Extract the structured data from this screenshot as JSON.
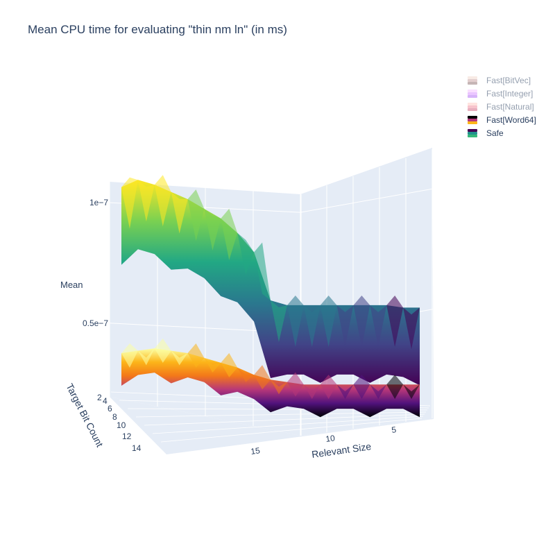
{
  "chart_data": {
    "type": "surface3d",
    "title": "Mean CPU time for evaluating \"thin nm ln\" (in ms)",
    "xlabel": "Relevant Size",
    "ylabel": "Target Bit Count",
    "zlabel": "Mean",
    "x_ticks": [
      "15",
      "10",
      "5"
    ],
    "y_ticks": [
      "2",
      "4",
      "6",
      "8",
      "10",
      "12",
      "14"
    ],
    "z_ticks": [
      "1e−7",
      "0.5e−7"
    ],
    "z_tick_values": [
      1e-07,
      5e-08
    ],
    "x_range": [
      1,
      19
    ],
    "y_range": [
      1,
      15
    ],
    "z_range": [
      2e-08,
      1.15e-07
    ],
    "legend_position": "top-right",
    "legend": [
      {
        "name": "Fast[BitVec]",
        "visible": false,
        "colors": [
          "#f2d8cc",
          "#c8a0a0",
          "#8e6e6e"
        ]
      },
      {
        "name": "Fast[Integer]",
        "visible": false,
        "colors": [
          "#f7c1ff",
          "#d68dff",
          "#b069f5"
        ]
      },
      {
        "name": "Fast[Natural]",
        "visible": false,
        "colors": [
          "#ffc8c0",
          "#f08a9a",
          "#d2607f"
        ]
      },
      {
        "name": "Fast[Word64]",
        "visible": true,
        "colors": [
          "#000004",
          "#b73779",
          "#fcb519"
        ]
      },
      {
        "name": "Safe",
        "visible": true,
        "colors": [
          "#440154",
          "#21918c",
          "#35b779"
        ]
      }
    ],
    "series": [
      {
        "name": "Safe",
        "colorscale": "viridis",
        "x": [
          19,
          18,
          17,
          16,
          15,
          14,
          13,
          12,
          11,
          10,
          9,
          8,
          7,
          6,
          5,
          4,
          3,
          2,
          1
        ],
        "values": [
          1.05e-07,
          1.08e-07,
          1.06e-07,
          1.03e-07,
          1e-07,
          9.6e-08,
          9.2e-08,
          8.6e-08,
          7.8e-08,
          5.8e-08,
          5.6e-08,
          5.6e-08,
          5.6e-08,
          5.6e-08,
          5.6e-08,
          5.6e-08,
          5.6e-08,
          5.5e-08,
          5.5e-08
        ]
      },
      {
        "name": "Fast[Word64]",
        "colorscale": "inferno",
        "x": [
          19,
          18,
          17,
          16,
          15,
          14,
          13,
          12,
          11,
          10,
          9,
          8,
          7,
          6,
          5,
          4,
          3,
          2,
          1
        ],
        "values": [
          3.9e-08,
          4e-08,
          4.1e-08,
          4e-08,
          3.9e-08,
          3.7e-08,
          3.5e-08,
          3.3e-08,
          3e-08,
          2.8e-08,
          2.7e-08,
          2.6e-08,
          2.6e-08,
          2.6e-08,
          2.6e-08,
          2.6e-08,
          2.6e-08,
          2.6e-08,
          2.6e-08
        ]
      }
    ]
  }
}
